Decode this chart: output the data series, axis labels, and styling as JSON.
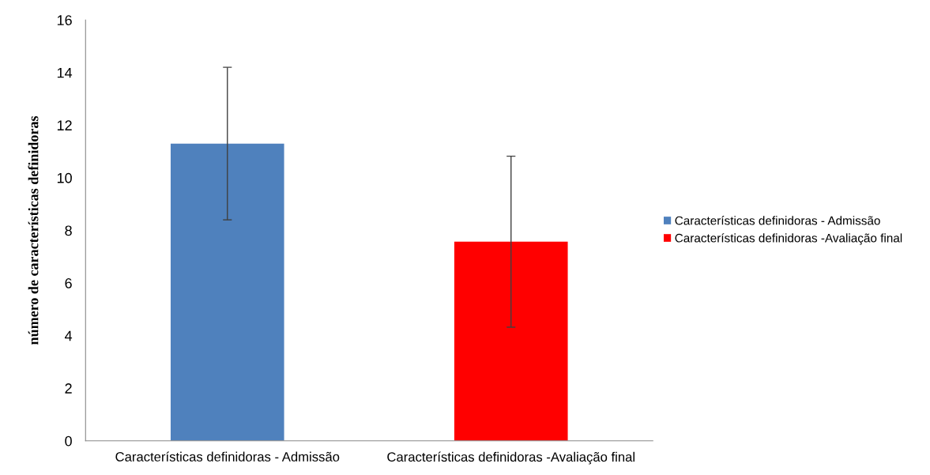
{
  "chart_data": {
    "type": "bar",
    "ylabel": "número de características definidoras",
    "categories": [
      "Características definidoras - Admissão",
      "Características definidoras -Avaliação final"
    ],
    "series": [
      {
        "name": "Características definidoras - Admissão",
        "color": "#4f81bd",
        "values": [
          11.3,
          null
        ],
        "errors": [
          2.9,
          null
        ]
      },
      {
        "name": "Características definidoras -Avaliação final",
        "color": "#ff0000",
        "values": [
          null,
          7.57
        ],
        "errors": [
          null,
          3.25
        ]
      }
    ],
    "ylim": [
      0,
      16
    ],
    "yticks": [
      0,
      2,
      4,
      6,
      8,
      10,
      12,
      14,
      16
    ],
    "grid": false,
    "legend": "right"
  }
}
